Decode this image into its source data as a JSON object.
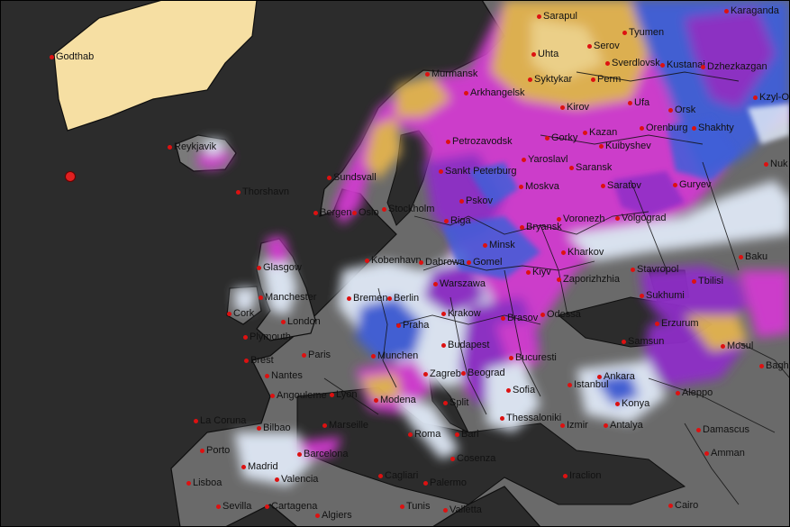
{
  "colors": {
    "ocean": "#2c2c2c",
    "land": "#6e6e6e",
    "greenland": "#f6dfa3",
    "snow_light": "#dfe8f6",
    "snow_blue": "#3f5fd8",
    "snow_purple": "#8e2fc7",
    "snow_magenta": "#d23ad0",
    "snow_orange": "#e3b34f",
    "border": "#111111",
    "city_dot": "#dd1111"
  },
  "cities": [
    {
      "name": "Godthab"
    },
    {
      "name": "Reykjavik"
    },
    {
      "name": "Thorshavn"
    },
    {
      "name": "Sarapul"
    },
    {
      "name": "Tyumen"
    },
    {
      "name": "Karaganda"
    },
    {
      "name": "Uhta"
    },
    {
      "name": "Serov"
    },
    {
      "name": "Sverdlovsk"
    },
    {
      "name": "Kustanai"
    },
    {
      "name": "Dzhezkazgan"
    },
    {
      "name": "Arkhangelsk"
    },
    {
      "name": "Syktykar"
    },
    {
      "name": "Perm"
    },
    {
      "name": "Murmansk"
    },
    {
      "name": "Ufa"
    },
    {
      "name": "Kirov"
    },
    {
      "name": "Orsk"
    },
    {
      "name": "Kzyl-O"
    },
    {
      "name": "Kazan"
    },
    {
      "name": "Orenburg"
    },
    {
      "name": "Shakhty"
    },
    {
      "name": "Petrozavodsk"
    },
    {
      "name": "Gorky"
    },
    {
      "name": "Yaroslavl"
    },
    {
      "name": "Kuibyshev"
    },
    {
      "name": "Sankt Peterburg"
    },
    {
      "name": "Saransk"
    },
    {
      "name": "Nuk"
    },
    {
      "name": "Sundsvall"
    },
    {
      "name": "Moskva"
    },
    {
      "name": "Saratov"
    },
    {
      "name": "Guryev"
    },
    {
      "name": "Bergen"
    },
    {
      "name": "Oslo"
    },
    {
      "name": "Stockholm"
    },
    {
      "name": "Pskov"
    },
    {
      "name": "Riga"
    },
    {
      "name": "Voronezh"
    },
    {
      "name": "Volgograd"
    },
    {
      "name": "Bryansk"
    },
    {
      "name": "Glasgow"
    },
    {
      "name": "Kobenhavn"
    },
    {
      "name": "Minsk"
    },
    {
      "name": "Kharkov"
    },
    {
      "name": "Baku"
    },
    {
      "name": "Dabrowa"
    },
    {
      "name": "Gomel"
    },
    {
      "name": "Manchester"
    },
    {
      "name": "Bremen"
    },
    {
      "name": "Berlin"
    },
    {
      "name": "Warszawa"
    },
    {
      "name": "Kiyv"
    },
    {
      "name": "Zaporizhzhia"
    },
    {
      "name": "Stavropol"
    },
    {
      "name": "Tbilisi"
    },
    {
      "name": "Cork"
    },
    {
      "name": "London"
    },
    {
      "name": "Sukhumi"
    },
    {
      "name": "Praha"
    },
    {
      "name": "Krakow"
    },
    {
      "name": "Brasov"
    },
    {
      "name": "Odessa"
    },
    {
      "name": "Plymouth"
    },
    {
      "name": "Erzurum"
    },
    {
      "name": "Paris"
    },
    {
      "name": "Budapest"
    },
    {
      "name": "Samsun"
    },
    {
      "name": "Mosul"
    },
    {
      "name": "Brest"
    },
    {
      "name": "Munchen"
    },
    {
      "name": "Bucuresti"
    },
    {
      "name": "Nantes"
    },
    {
      "name": "Zagreb"
    },
    {
      "name": "Beograd"
    },
    {
      "name": "Ankara"
    },
    {
      "name": "Baghdad"
    },
    {
      "name": "Angouleme"
    },
    {
      "name": "Lyon"
    },
    {
      "name": "Split"
    },
    {
      "name": "Sofia"
    },
    {
      "name": "Istanbul"
    },
    {
      "name": "Aleppo"
    },
    {
      "name": "Modena"
    },
    {
      "name": "Konya"
    },
    {
      "name": "La Coruna"
    },
    {
      "name": "Marseille"
    },
    {
      "name": "Thessaloniki"
    },
    {
      "name": "Izmir"
    },
    {
      "name": "Antalya"
    },
    {
      "name": "Damascus"
    },
    {
      "name": "Bilbao"
    },
    {
      "name": "Roma"
    },
    {
      "name": "Bari"
    },
    {
      "name": "Porto"
    },
    {
      "name": "Barcelona"
    },
    {
      "name": "Amman"
    },
    {
      "name": "Madrid"
    },
    {
      "name": "Valencia"
    },
    {
      "name": "Cosenza"
    },
    {
      "name": "Cagliari"
    },
    {
      "name": "Iraclion"
    },
    {
      "name": "Lisboa"
    },
    {
      "name": "Palermo"
    },
    {
      "name": "Sevilla"
    },
    {
      "name": "Cartagena"
    },
    {
      "name": "Tunis"
    },
    {
      "name": "Cairo"
    },
    {
      "name": "Algiers"
    },
    {
      "name": "Valletta"
    }
  ]
}
